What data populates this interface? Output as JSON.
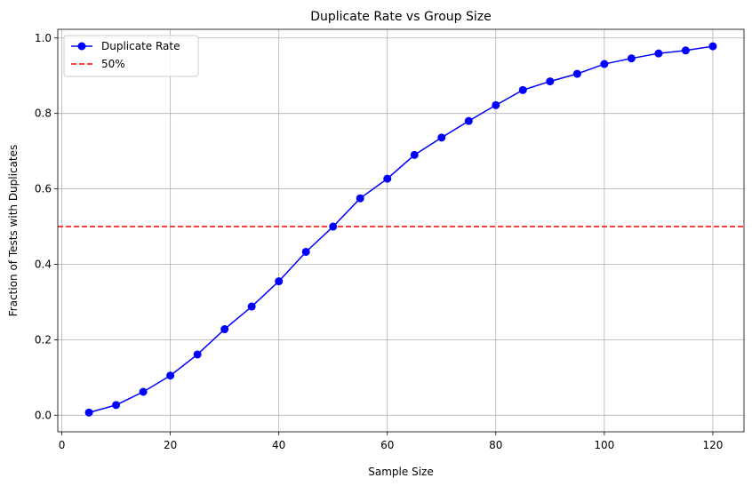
{
  "chart_data": {
    "type": "line",
    "title": "Duplicate Rate vs Group Size",
    "xlabel": "Sample Size",
    "ylabel": "Fraction of Tests with Duplicates",
    "xlim": [
      -0.75,
      125.75
    ],
    "ylim": [
      -0.044,
      1.023
    ],
    "xticks": [
      0,
      20,
      40,
      60,
      80,
      100,
      120
    ],
    "yticks": [
      0.0,
      0.2,
      0.4,
      0.6,
      0.8,
      1.0
    ],
    "xtick_labels": [
      "0",
      "20",
      "40",
      "60",
      "80",
      "100",
      "120"
    ],
    "ytick_labels": [
      "0.0",
      "0.2",
      "0.4",
      "0.6",
      "0.8",
      "1.0"
    ],
    "grid": true,
    "legend": "top-left",
    "series": [
      {
        "name": "Duplicate Rate",
        "color": "#0000ff",
        "marker": "circle",
        "x": [
          5,
          10,
          15,
          20,
          25,
          30,
          35,
          40,
          45,
          50,
          55,
          60,
          65,
          70,
          75,
          80,
          85,
          90,
          95,
          100,
          105,
          110,
          115,
          120
        ],
        "y": [
          0.007,
          0.027,
          0.062,
          0.105,
          0.161,
          0.228,
          0.288,
          0.355,
          0.433,
          0.5,
          0.575,
          0.627,
          0.69,
          0.736,
          0.78,
          0.822,
          0.862,
          0.885,
          0.905,
          0.931,
          0.946,
          0.959,
          0.967,
          0.978
        ]
      }
    ],
    "hlines": [
      {
        "name": "50%",
        "y": 0.5,
        "color": "#ff0000",
        "style": "dashed"
      }
    ]
  }
}
